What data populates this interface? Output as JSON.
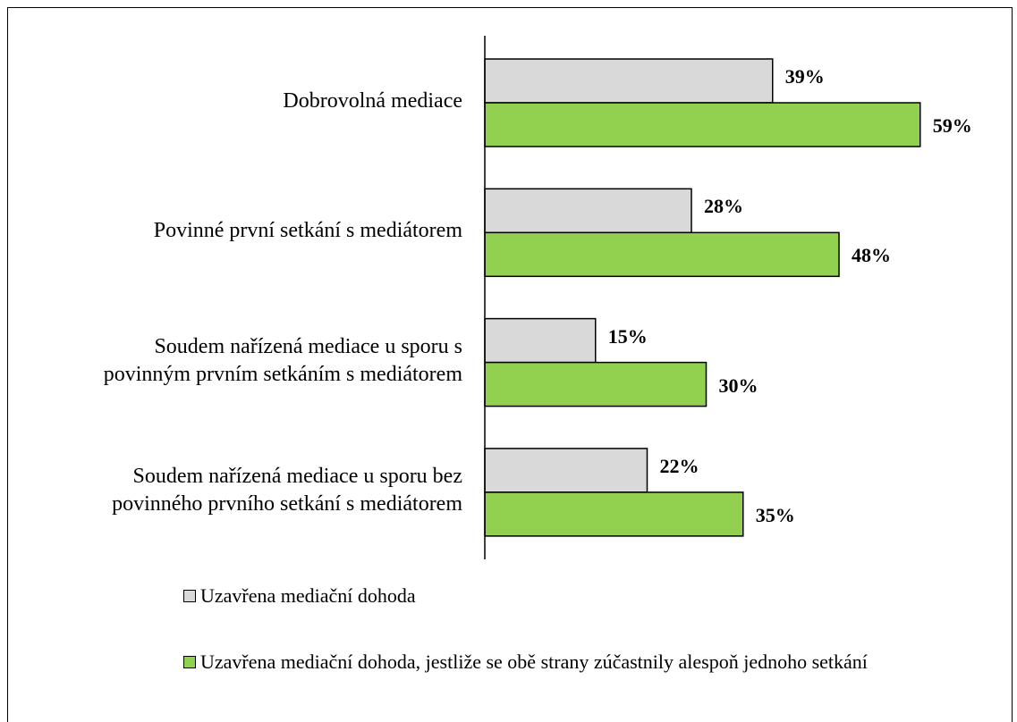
{
  "chart_data": {
    "type": "bar",
    "orientation": "horizontal",
    "categories": [
      "Dobrovolná mediace",
      "Povinné první setkání s mediátorem",
      "Soudem nařízená mediace u sporu s\npovinným prvním setkáním s mediátorem",
      "Soudem nařízená mediace u sporu bez\npovinného prvního setkání s mediátorem"
    ],
    "series": [
      {
        "name": "Uzavřena mediační dohoda",
        "color": "#d9d9d9",
        "values": [
          39,
          28,
          15,
          22
        ],
        "value_labels": [
          "39%",
          "28%",
          "15%",
          "22%"
        ]
      },
      {
        "name": "Uzavřena mediační dohoda, jestliže se obě strany zúčastnily alespoň jednoho setkání",
        "color": "#92d050",
        "values": [
          59,
          48,
          30,
          35
        ],
        "value_labels": [
          "59%",
          "48%",
          "30%",
          "35%"
        ]
      }
    ]
  }
}
